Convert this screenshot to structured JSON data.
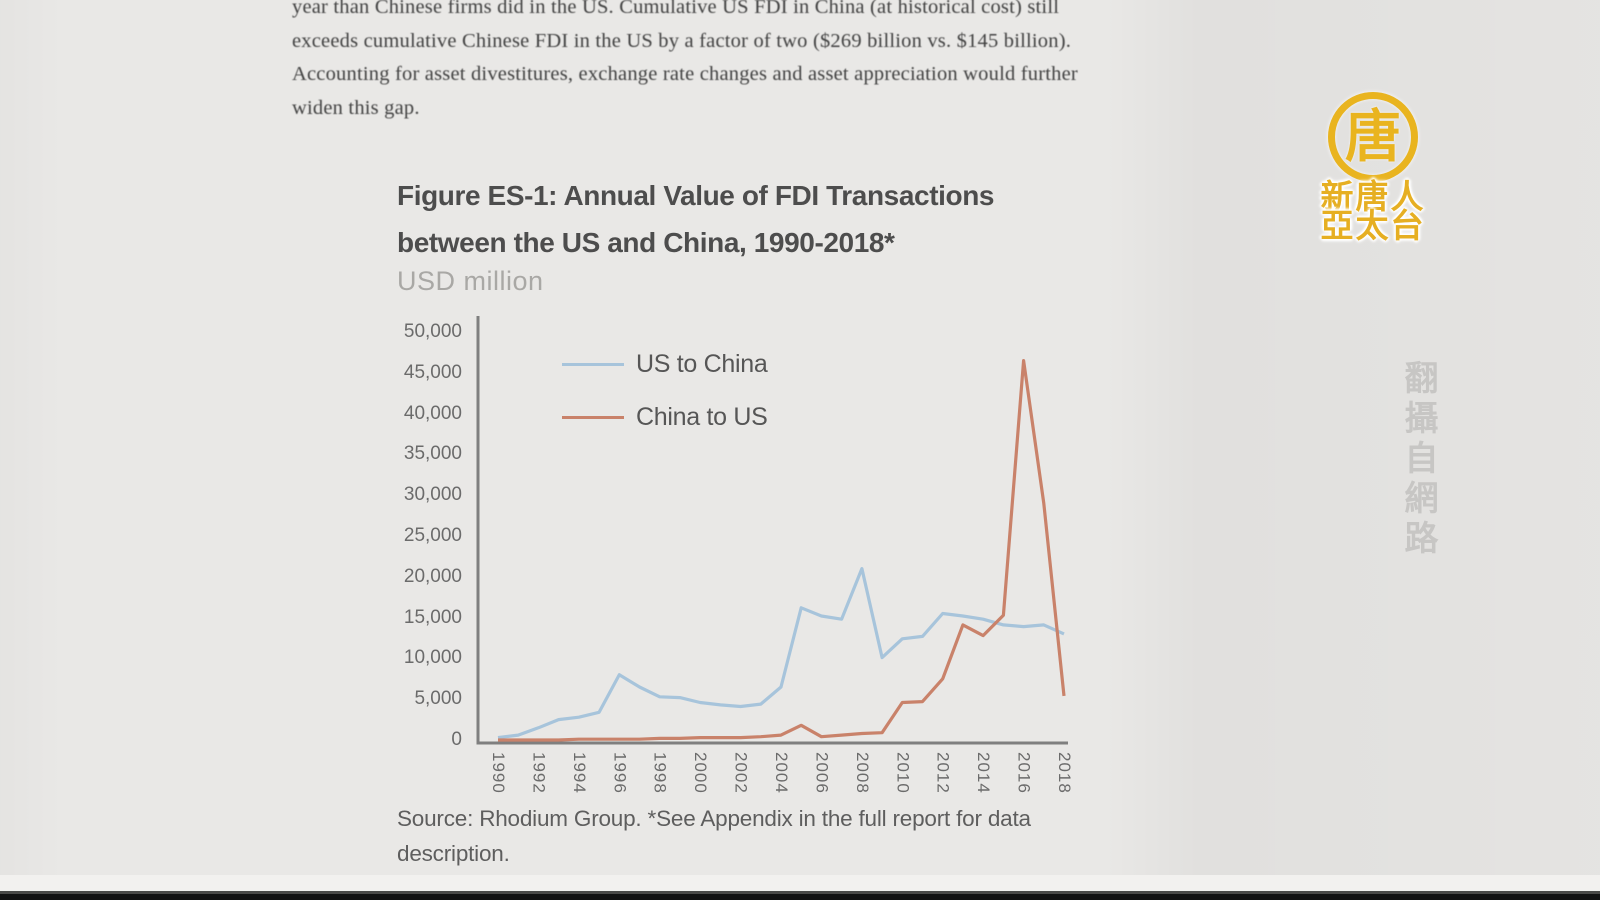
{
  "page": {
    "intro_lines": [
      "year than Chinese firms did in the US. Cumulative US FDI in China (at historical cost) still",
      "exceeds cumulative Chinese FDI in the US by a factor of two ($269 billion vs. $145 billion).",
      "Accounting for asset divestitures, exchange rate changes and asset appreciation would further",
      "widen this gap."
    ],
    "figure": {
      "title_line1": "Figure ES-1: Annual Value of FDI Transactions",
      "title_line2": "between the US and China, 1990-2018*",
      "units_label": "USD million",
      "source_line1": "Source: Rhodium Group. *See Appendix in the full report for data",
      "source_line2": "description."
    },
    "logo": {
      "symbol": "唐",
      "line1": "新唐人",
      "line2": "亞太台"
    },
    "watermark_vertical": "翻攝自網路"
  },
  "chart_data": {
    "type": "line",
    "title": "Figure ES-1: Annual Value of FDI Transactions between the US and China, 1990-2018*",
    "xlabel": "",
    "ylabel": "USD million",
    "ylim": [
      0,
      50000
    ],
    "ytick_step": 5000,
    "grid": false,
    "legend_position": "top-left-inside",
    "x": [
      1990,
      1991,
      1992,
      1993,
      1994,
      1995,
      1996,
      1997,
      1998,
      1999,
      2000,
      2001,
      2002,
      2003,
      2004,
      2005,
      2006,
      2007,
      2008,
      2009,
      2010,
      2011,
      2012,
      2013,
      2014,
      2015,
      2016,
      2017,
      2018
    ],
    "xtick_years": [
      1990,
      1992,
      1994,
      1996,
      1998,
      2000,
      2002,
      2004,
      2006,
      2008,
      2010,
      2012,
      2014,
      2016,
      2018
    ],
    "series": [
      {
        "name": "US to China",
        "color": "#a7c4db",
        "values": [
          300,
          600,
          1500,
          2500,
          2800,
          3400,
          8000,
          6500,
          5300,
          5200,
          4600,
          4300,
          4100,
          4400,
          6500,
          16200,
          15200,
          14800,
          21000,
          10100,
          12400,
          12700,
          15500,
          15200,
          14800,
          14100,
          13900,
          14100,
          13000
        ]
      },
      {
        "name": "China to US",
        "color": "#c9826a",
        "values": [
          0,
          0,
          0,
          0,
          100,
          100,
          100,
          100,
          200,
          200,
          300,
          300,
          300,
          400,
          600,
          1800,
          400,
          600,
          800,
          900,
          4600,
          4700,
          7500,
          14100,
          12800,
          15300,
          46500,
          29000,
          5400
        ]
      }
    ],
    "axis_color": "#7f7f7f"
  }
}
